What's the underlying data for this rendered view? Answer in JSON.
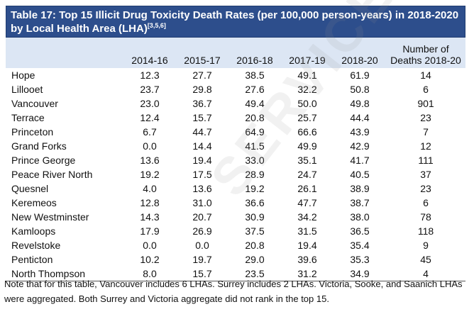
{
  "title": "Table 17: Top 15 Illicit Drug Toxicity Death Rates (per 100,000 person-years) in 2018-2020 by Local Health Area (LHA)",
  "title_refs": "[3,5,6]",
  "columns": [
    "",
    "2014-16",
    "2015-17",
    "2016-18",
    "2017-19",
    "2018-20",
    "Number of Deaths 2018-20"
  ],
  "last_column_lines": [
    "Number of",
    "Deaths 2018-20"
  ],
  "rows": [
    {
      "lha": "Hope",
      "r1416": "12.3",
      "r1517": "27.7",
      "r1618": "38.5",
      "r1719": "49.1",
      "r1820": "61.9",
      "deaths": "14"
    },
    {
      "lha": "Lillooet",
      "r1416": "23.7",
      "r1517": "29.8",
      "r1618": "27.6",
      "r1719": "32.2",
      "r1820": "50.8",
      "deaths": "6"
    },
    {
      "lha": "Vancouver",
      "r1416": "23.0",
      "r1517": "36.7",
      "r1618": "49.4",
      "r1719": "50.0",
      "r1820": "49.8",
      "deaths": "901"
    },
    {
      "lha": "Terrace",
      "r1416": "12.4",
      "r1517": "15.7",
      "r1618": "20.8",
      "r1719": "25.7",
      "r1820": "44.4",
      "deaths": "23"
    },
    {
      "lha": "Princeton",
      "r1416": "6.7",
      "r1517": "44.7",
      "r1618": "64.9",
      "r1719": "66.6",
      "r1820": "43.9",
      "deaths": "7"
    },
    {
      "lha": "Grand Forks",
      "r1416": "0.0",
      "r1517": "14.4",
      "r1618": "41.5",
      "r1719": "49.9",
      "r1820": "42.9",
      "deaths": "12"
    },
    {
      "lha": "Prince George",
      "r1416": "13.6",
      "r1517": "19.4",
      "r1618": "33.0",
      "r1719": "35.1",
      "r1820": "41.7",
      "deaths": "111"
    },
    {
      "lha": "Peace River North",
      "r1416": "19.2",
      "r1517": "17.5",
      "r1618": "28.9",
      "r1719": "24.7",
      "r1820": "40.5",
      "deaths": "37"
    },
    {
      "lha": "Quesnel",
      "r1416": "4.0",
      "r1517": "13.6",
      "r1618": "19.2",
      "r1719": "26.1",
      "r1820": "38.9",
      "deaths": "23"
    },
    {
      "lha": "Keremeos",
      "r1416": "12.8",
      "r1517": "31.0",
      "r1618": "36.6",
      "r1719": "47.7",
      "r1820": "38.7",
      "deaths": "6"
    },
    {
      "lha": "New Westminster",
      "r1416": "14.3",
      "r1517": "20.7",
      "r1618": "30.9",
      "r1719": "34.2",
      "r1820": "38.0",
      "deaths": "78"
    },
    {
      "lha": "Kamloops",
      "r1416": "17.9",
      "r1517": "26.9",
      "r1618": "37.5",
      "r1719": "31.5",
      "r1820": "36.5",
      "deaths": "118"
    },
    {
      "lha": "Revelstoke",
      "r1416": "0.0",
      "r1517": "0.0",
      "r1618": "20.8",
      "r1719": "19.4",
      "r1820": "35.4",
      "deaths": "9"
    },
    {
      "lha": "Penticton",
      "r1416": "10.2",
      "r1517": "19.7",
      "r1618": "29.0",
      "r1719": "39.6",
      "r1820": "35.3",
      "deaths": "45"
    },
    {
      "lha": "North Thompson",
      "r1416": "8.0",
      "r1517": "15.7",
      "r1618": "23.5",
      "r1719": "31.2",
      "r1820": "34.9",
      "deaths": "4"
    }
  ],
  "note": "Note that for this table, Vancouver includes 6 LHAs. Surrey includes 2 LHAs. Victoria, Sooke, and Saanich LHAs were aggregated. Both Surrey and Victoria aggregate did not rank in the top 15.",
  "watermark": "SERVICES",
  "colors": {
    "title_bg": "#2d4e8c",
    "title_text": "#ffffff",
    "header_bg": "#dce6f4"
  }
}
